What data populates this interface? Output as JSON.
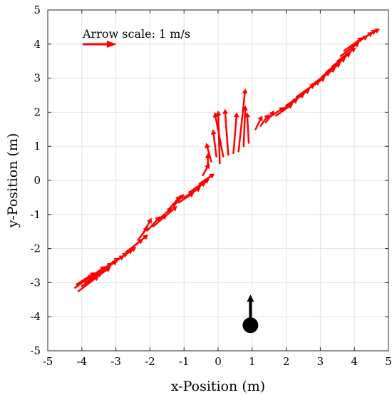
{
  "chart_data": {
    "type": "quiver",
    "xlabel": "x-Position (m)",
    "ylabel": "y-Position (m)",
    "xlim": [
      -5,
      5
    ],
    "ylim": [
      -5,
      5
    ],
    "xticks": [
      -5,
      -4,
      -3,
      -2,
      -1,
      0,
      1,
      2,
      3,
      4,
      5
    ],
    "yticks": [
      -5,
      -4,
      -3,
      -2,
      -1,
      0,
      1,
      2,
      3,
      4,
      5
    ],
    "grid": true,
    "legend": {
      "text": "Arrow scale: 1 m/s",
      "placement": "top-left",
      "arrow_length_m": 1,
      "color": "#ff0000"
    },
    "arrow_color": "#ff0000",
    "marker_color": "#000000",
    "marker": {
      "x": 0.95,
      "y": -4.25,
      "u": 0,
      "v": 0.9
    },
    "arrows": [
      {
        "x": -4.2,
        "y": -3.15,
        "u": 0.55,
        "v": 0.4
      },
      {
        "x": -4.1,
        "y": -3.25,
        "u": 0.6,
        "v": 0.45
      },
      {
        "x": -4.15,
        "y": -3.05,
        "u": 0.55,
        "v": 0.35
      },
      {
        "x": -4.0,
        "y": -3.1,
        "u": 0.6,
        "v": 0.4
      },
      {
        "x": -3.9,
        "y": -3.0,
        "u": 0.6,
        "v": 0.42
      },
      {
        "x": -3.85,
        "y": -2.9,
        "u": 0.55,
        "v": 0.38
      },
      {
        "x": -3.75,
        "y": -2.95,
        "u": 0.6,
        "v": 0.4
      },
      {
        "x": -3.65,
        "y": -2.8,
        "u": 0.55,
        "v": 0.38
      },
      {
        "x": -3.55,
        "y": -2.75,
        "u": 0.6,
        "v": 0.4
      },
      {
        "x": -3.45,
        "y": -2.65,
        "u": 0.55,
        "v": 0.38
      },
      {
        "x": -3.35,
        "y": -2.6,
        "u": 0.6,
        "v": 0.4
      },
      {
        "x": -3.2,
        "y": -2.5,
        "u": 0.55,
        "v": 0.38
      },
      {
        "x": -3.05,
        "y": -2.4,
        "u": 0.55,
        "v": 0.38
      },
      {
        "x": -2.9,
        "y": -2.3,
        "u": 0.5,
        "v": 0.35
      },
      {
        "x": -2.7,
        "y": -2.1,
        "u": 0.5,
        "v": 0.38
      },
      {
        "x": -2.5,
        "y": -1.95,
        "u": 0.45,
        "v": 0.36
      },
      {
        "x": -2.35,
        "y": -1.75,
        "u": 0.3,
        "v": 0.4
      },
      {
        "x": -2.2,
        "y": -1.55,
        "u": 0.25,
        "v": 0.45
      },
      {
        "x": -2.05,
        "y": -1.45,
        "u": 0.35,
        "v": 0.4
      },
      {
        "x": -1.9,
        "y": -1.35,
        "u": 0.4,
        "v": 0.35
      },
      {
        "x": -1.75,
        "y": -1.15,
        "u": 0.4,
        "v": 0.35
      },
      {
        "x": -1.6,
        "y": -1.1,
        "u": 0.4,
        "v": 0.35
      },
      {
        "x": -1.45,
        "y": -0.85,
        "u": 0.35,
        "v": 0.4
      },
      {
        "x": -1.3,
        "y": -0.75,
        "u": 0.3,
        "v": 0.35
      },
      {
        "x": -1.15,
        "y": -0.65,
        "u": 0.45,
        "v": 0.3
      },
      {
        "x": -1.0,
        "y": -0.5,
        "u": 0.5,
        "v": 0.3
      },
      {
        "x": -0.85,
        "y": -0.35,
        "u": 0.5,
        "v": 0.3
      },
      {
        "x": -0.7,
        "y": -0.25,
        "u": 0.45,
        "v": 0.3
      },
      {
        "x": -0.55,
        "y": -0.1,
        "u": 0.45,
        "v": 0.3
      },
      {
        "x": -0.45,
        "y": 0.15,
        "u": 0.2,
        "v": 0.35
      },
      {
        "x": -0.3,
        "y": 0.4,
        "u": 0.0,
        "v": 0.4
      },
      {
        "x": -0.2,
        "y": 0.55,
        "u": -0.15,
        "v": 0.55
      },
      {
        "x": -0.05,
        "y": 0.7,
        "u": -0.1,
        "v": 0.8
      },
      {
        "x": 0.05,
        "y": 0.5,
        "u": -0.05,
        "v": 1.55
      },
      {
        "x": 0.15,
        "y": 0.7,
        "u": -0.25,
        "v": 1.3
      },
      {
        "x": 0.3,
        "y": 0.75,
        "u": -0.1,
        "v": 1.35
      },
      {
        "x": 0.45,
        "y": 0.8,
        "u": 0.1,
        "v": 1.2
      },
      {
        "x": 0.6,
        "y": 0.85,
        "u": 0.2,
        "v": 1.85
      },
      {
        "x": 0.75,
        "y": 1.0,
        "u": 0.05,
        "v": 1.2
      },
      {
        "x": 0.9,
        "y": 1.1,
        "u": -0.05,
        "v": 0.9
      },
      {
        "x": 1.1,
        "y": 1.5,
        "u": 0.2,
        "v": 0.4
      },
      {
        "x": 1.25,
        "y": 1.6,
        "u": 0.25,
        "v": 0.35
      },
      {
        "x": 1.4,
        "y": 1.7,
        "u": 0.25,
        "v": 0.35
      },
      {
        "x": 1.5,
        "y": 1.85,
        "u": 0.45,
        "v": 0.3
      },
      {
        "x": 1.7,
        "y": 1.9,
        "u": 0.5,
        "v": 0.35
      },
      {
        "x": 1.85,
        "y": 2.05,
        "u": 0.5,
        "v": 0.35
      },
      {
        "x": 2.0,
        "y": 2.2,
        "u": 0.55,
        "v": 0.35
      },
      {
        "x": 2.15,
        "y": 2.3,
        "u": 0.55,
        "v": 0.38
      },
      {
        "x": 2.3,
        "y": 2.45,
        "u": 0.55,
        "v": 0.38
      },
      {
        "x": 2.45,
        "y": 2.55,
        "u": 0.55,
        "v": 0.38
      },
      {
        "x": 2.6,
        "y": 2.65,
        "u": 0.55,
        "v": 0.38
      },
      {
        "x": 2.75,
        "y": 2.8,
        "u": 0.55,
        "v": 0.4
      },
      {
        "x": 2.9,
        "y": 2.9,
        "u": 0.55,
        "v": 0.4
      },
      {
        "x": 3.05,
        "y": 3.05,
        "u": 0.55,
        "v": 0.4
      },
      {
        "x": 3.2,
        "y": 3.2,
        "u": 0.55,
        "v": 0.4
      },
      {
        "x": 3.35,
        "y": 3.35,
        "u": 0.55,
        "v": 0.4
      },
      {
        "x": 3.5,
        "y": 3.5,
        "u": 0.55,
        "v": 0.4
      },
      {
        "x": 3.6,
        "y": 3.65,
        "u": 0.55,
        "v": 0.4
      },
      {
        "x": 3.7,
        "y": 3.8,
        "u": 0.55,
        "v": 0.4
      },
      {
        "x": 3.85,
        "y": 3.9,
        "u": 0.55,
        "v": 0.35
      },
      {
        "x": 4.0,
        "y": 4.0,
        "u": 0.55,
        "v": 0.35
      },
      {
        "x": 4.15,
        "y": 4.1,
        "u": 0.5,
        "v": 0.32
      },
      {
        "x": 4.3,
        "y": 4.2,
        "u": 0.45,
        "v": 0.25
      }
    ]
  }
}
